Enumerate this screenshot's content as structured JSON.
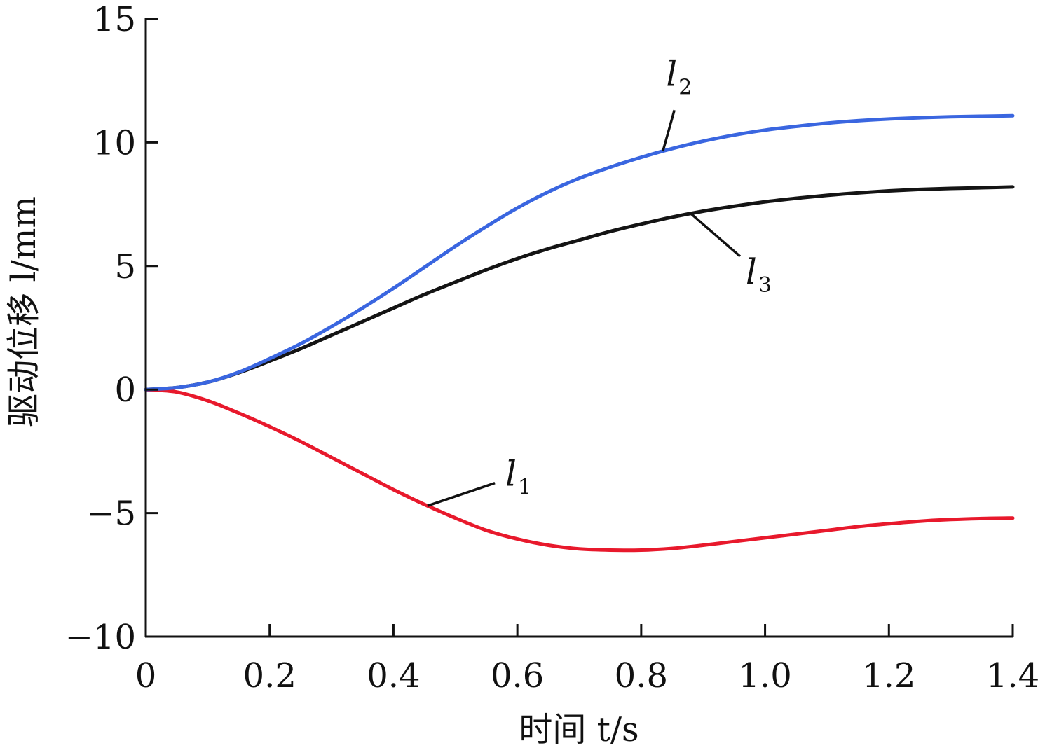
{
  "chart_data": {
    "type": "line",
    "xlabel": "时间 t/s",
    "ylabel": "驱动位移 l/mm",
    "xlim": [
      0,
      1.4
    ],
    "ylim": [
      -10,
      15
    ],
    "xticks": [
      0,
      0.2,
      0.4,
      0.6,
      0.8,
      1.0,
      1.2,
      1.4
    ],
    "xtick_labels": [
      "0",
      "0.2",
      "0.4",
      "0.6",
      "0.8",
      "1.0",
      "1.2",
      "1.4"
    ],
    "yticks": [
      -10,
      -5,
      0,
      5,
      10,
      15
    ],
    "ytick_labels": [
      "−10",
      "−5",
      "0",
      "5",
      "10",
      "15"
    ],
    "grid": false,
    "legend": "none",
    "series": [
      {
        "name": "l1",
        "label_main": "l",
        "label_sub": "1",
        "color": "#e8192c",
        "x": [
          0,
          0.05,
          0.1,
          0.15,
          0.2,
          0.25,
          0.3,
          0.35,
          0.4,
          0.45,
          0.5,
          0.55,
          0.6,
          0.65,
          0.7,
          0.75,
          0.8,
          0.85,
          0.9,
          0.95,
          1.0,
          1.05,
          1.1,
          1.15,
          1.2,
          1.25,
          1.3,
          1.35,
          1.4
        ],
        "values": [
          0,
          -0.1,
          -0.45,
          -0.95,
          -1.5,
          -2.1,
          -2.75,
          -3.4,
          -4.05,
          -4.65,
          -5.2,
          -5.7,
          -6.05,
          -6.3,
          -6.45,
          -6.5,
          -6.5,
          -6.43,
          -6.3,
          -6.15,
          -6.0,
          -5.85,
          -5.7,
          -5.55,
          -5.43,
          -5.33,
          -5.26,
          -5.22,
          -5.2
        ]
      },
      {
        "name": "l2",
        "label_main": "l",
        "label_sub": "2",
        "color": "#3a66e0",
        "x": [
          0,
          0.05,
          0.1,
          0.15,
          0.2,
          0.25,
          0.3,
          0.35,
          0.4,
          0.45,
          0.5,
          0.55,
          0.6,
          0.65,
          0.7,
          0.75,
          0.8,
          0.85,
          0.9,
          0.95,
          1.0,
          1.05,
          1.1,
          1.15,
          1.2,
          1.25,
          1.3,
          1.35,
          1.4
        ],
        "values": [
          0,
          0.08,
          0.3,
          0.7,
          1.25,
          1.85,
          2.55,
          3.3,
          4.1,
          4.95,
          5.8,
          6.6,
          7.35,
          8.0,
          8.55,
          9.0,
          9.4,
          9.75,
          10.05,
          10.3,
          10.5,
          10.65,
          10.78,
          10.88,
          10.95,
          11.0,
          11.04,
          11.06,
          11.08
        ]
      },
      {
        "name": "l3",
        "label_main": "l",
        "label_sub": "3",
        "color": "#141414",
        "x": [
          0,
          0.05,
          0.1,
          0.15,
          0.2,
          0.25,
          0.3,
          0.35,
          0.4,
          0.45,
          0.5,
          0.55,
          0.6,
          0.65,
          0.7,
          0.75,
          0.8,
          0.85,
          0.9,
          0.95,
          1.0,
          1.05,
          1.1,
          1.15,
          1.2,
          1.25,
          1.3,
          1.35,
          1.4
        ],
        "values": [
          0,
          0.08,
          0.3,
          0.68,
          1.15,
          1.65,
          2.2,
          2.75,
          3.3,
          3.85,
          4.35,
          4.85,
          5.3,
          5.7,
          6.05,
          6.4,
          6.7,
          6.98,
          7.22,
          7.42,
          7.6,
          7.74,
          7.86,
          7.96,
          8.04,
          8.1,
          8.14,
          8.17,
          8.2
        ]
      }
    ],
    "annotations": [
      {
        "series": "l1",
        "pointer_x": 0.455,
        "text_x": 0.575,
        "text_y": -3.5
      },
      {
        "series": "l2",
        "pointer_x": 0.835,
        "text_x": 0.84,
        "text_y": 12.3
      },
      {
        "series": "l3",
        "pointer_x": 0.88,
        "text_x": 0.98,
        "text_y": 4.4
      }
    ]
  }
}
